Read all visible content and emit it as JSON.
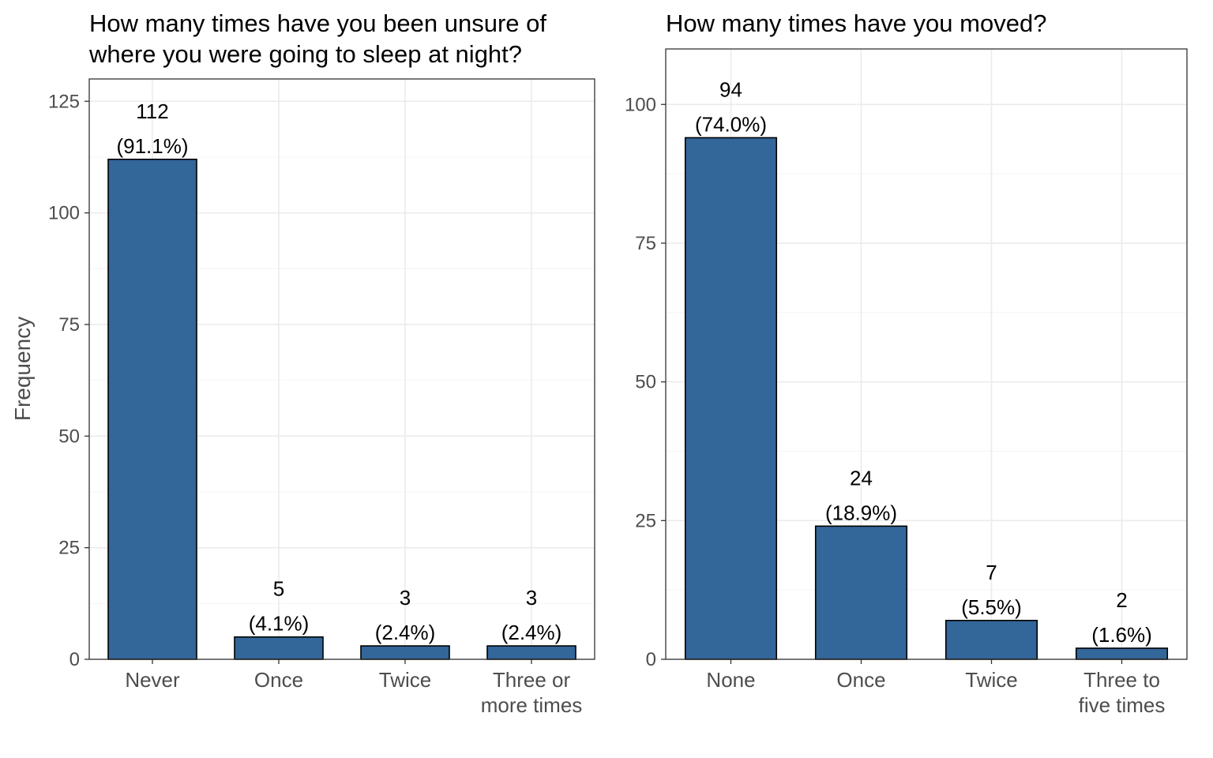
{
  "y_axis_label": "Frequency",
  "colors": {
    "bar_fill": "#336699",
    "bar_stroke": "#000000",
    "grid": "#ebebeb"
  },
  "chart_data": [
    {
      "type": "bar",
      "title_lines": [
        "How many times have you been unsure of",
        "where you were going to sleep at night?"
      ],
      "ylabel": "Frequency",
      "ylim": [
        0,
        130
      ],
      "yticks": [
        0,
        25,
        50,
        75,
        100,
        125
      ],
      "grid": true,
      "categories": [
        [
          "Never"
        ],
        [
          "Once"
        ],
        [
          "Twice"
        ],
        [
          "Three or",
          "more times"
        ]
      ],
      "values": [
        112,
        5,
        3,
        3
      ],
      "percent_labels": [
        "(91.1%)",
        "(4.1%)",
        "(2.4%)",
        "(2.4%)"
      ]
    },
    {
      "type": "bar",
      "title_lines": [
        "How many times have you moved?"
      ],
      "ylabel": "",
      "ylim": [
        0,
        110
      ],
      "yticks": [
        0,
        25,
        50,
        75,
        100
      ],
      "grid": true,
      "categories": [
        [
          "None"
        ],
        [
          "Once"
        ],
        [
          "Twice"
        ],
        [
          "Three to",
          "five times"
        ]
      ],
      "values": [
        94,
        24,
        7,
        2
      ],
      "percent_labels": [
        "(74.0%)",
        "(18.9%)",
        "(5.5%)",
        "(1.6%)"
      ]
    }
  ]
}
